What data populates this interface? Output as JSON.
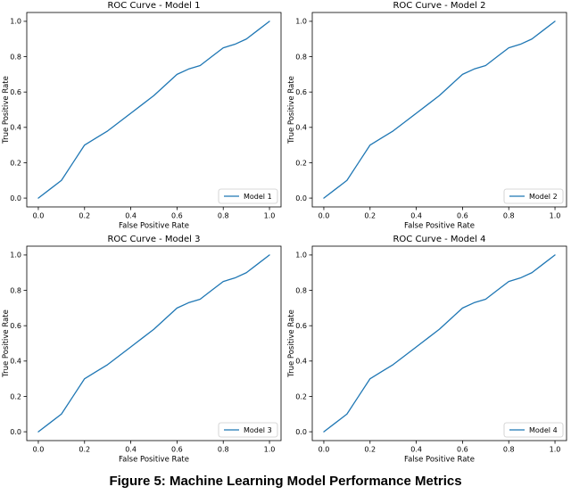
{
  "figure": {
    "caption": "Figure 5: Machine Learning Model Performance Metrics"
  },
  "style": {
    "line_color": "#1f77b4",
    "axis_color": "#000000",
    "legend_border_color": "#cccccc",
    "background_color": "#ffffff"
  },
  "chart_data": [
    {
      "type": "line",
      "title": "ROC Curve - Model 1",
      "xlabel": "False Positive Rate",
      "ylabel": "True Positive Rate",
      "xlim": [
        -0.05,
        1.05
      ],
      "ylim": [
        -0.05,
        1.05
      ],
      "xticks": [
        "0.0",
        "0.2",
        "0.4",
        "0.6",
        "0.8",
        "1.0"
      ],
      "yticks": [
        "0.0",
        "0.2",
        "0.4",
        "0.6",
        "0.8",
        "1.0"
      ],
      "grid": false,
      "legend": {
        "label": "Model 1",
        "position": "lower right"
      },
      "line_color": "#1f77b4",
      "x": [
        0,
        0.05,
        0.1,
        0.15,
        0.2,
        0.25,
        0.3,
        0.35,
        0.4,
        0.45,
        0.5,
        0.55,
        0.6,
        0.65,
        0.7,
        0.75,
        0.8,
        0.85,
        0.9,
        0.95,
        1.0
      ],
      "series": [
        {
          "name": "Model 1",
          "values": [
            0,
            0.05,
            0.1,
            0.2,
            0.3,
            0.34,
            0.38,
            0.43,
            0.48,
            0.53,
            0.58,
            0.64,
            0.7,
            0.73,
            0.75,
            0.8,
            0.85,
            0.87,
            0.9,
            0.95,
            1.0
          ]
        }
      ]
    },
    {
      "type": "line",
      "title": "ROC Curve - Model 2",
      "xlabel": "False Positive Rate",
      "ylabel": "True Positive Rate",
      "xlim": [
        -0.05,
        1.05
      ],
      "ylim": [
        -0.05,
        1.05
      ],
      "xticks": [
        "0.0",
        "0.2",
        "0.4",
        "0.6",
        "0.8",
        "1.0"
      ],
      "yticks": [
        "0.0",
        "0.2",
        "0.4",
        "0.6",
        "0.8",
        "1.0"
      ],
      "grid": false,
      "legend": {
        "label": "Model 2",
        "position": "lower right"
      },
      "line_color": "#1f77b4",
      "x": [
        0,
        0.05,
        0.1,
        0.15,
        0.2,
        0.25,
        0.3,
        0.35,
        0.4,
        0.45,
        0.5,
        0.55,
        0.6,
        0.65,
        0.7,
        0.75,
        0.8,
        0.85,
        0.9,
        0.95,
        1.0
      ],
      "series": [
        {
          "name": "Model 2",
          "values": [
            0,
            0.05,
            0.1,
            0.2,
            0.3,
            0.34,
            0.38,
            0.43,
            0.48,
            0.53,
            0.58,
            0.64,
            0.7,
            0.73,
            0.75,
            0.8,
            0.85,
            0.87,
            0.9,
            0.95,
            1.0
          ]
        }
      ]
    },
    {
      "type": "line",
      "title": "ROC Curve - Model 3",
      "xlabel": "False Positive Rate",
      "ylabel": "True Positive Rate",
      "xlim": [
        -0.05,
        1.05
      ],
      "ylim": [
        -0.05,
        1.05
      ],
      "xticks": [
        "0.0",
        "0.2",
        "0.4",
        "0.6",
        "0.8",
        "1.0"
      ],
      "yticks": [
        "0.0",
        "0.2",
        "0.4",
        "0.6",
        "0.8",
        "1.0"
      ],
      "grid": false,
      "legend": {
        "label": "Model 3",
        "position": "lower right"
      },
      "line_color": "#1f77b4",
      "x": [
        0,
        0.05,
        0.1,
        0.15,
        0.2,
        0.25,
        0.3,
        0.35,
        0.4,
        0.45,
        0.5,
        0.55,
        0.6,
        0.65,
        0.7,
        0.75,
        0.8,
        0.85,
        0.9,
        0.95,
        1.0
      ],
      "series": [
        {
          "name": "Model 3",
          "values": [
            0,
            0.05,
            0.1,
            0.2,
            0.3,
            0.34,
            0.38,
            0.43,
            0.48,
            0.53,
            0.58,
            0.64,
            0.7,
            0.73,
            0.75,
            0.8,
            0.85,
            0.87,
            0.9,
            0.95,
            1.0
          ]
        }
      ]
    },
    {
      "type": "line",
      "title": "ROC Curve - Model 4",
      "xlabel": "False Positive Rate",
      "ylabel": "True Positive Rate",
      "xlim": [
        -0.05,
        1.05
      ],
      "ylim": [
        -0.05,
        1.05
      ],
      "xticks": [
        "0.0",
        "0.2",
        "0.4",
        "0.6",
        "0.8",
        "1.0"
      ],
      "yticks": [
        "0.0",
        "0.2",
        "0.4",
        "0.6",
        "0.8",
        "1.0"
      ],
      "grid": false,
      "legend": {
        "label": "Model 4",
        "position": "lower right"
      },
      "line_color": "#1f77b4",
      "x": [
        0,
        0.05,
        0.1,
        0.15,
        0.2,
        0.25,
        0.3,
        0.35,
        0.4,
        0.45,
        0.5,
        0.55,
        0.6,
        0.65,
        0.7,
        0.75,
        0.8,
        0.85,
        0.9,
        0.95,
        1.0
      ],
      "series": [
        {
          "name": "Model 4",
          "values": [
            0,
            0.05,
            0.1,
            0.2,
            0.3,
            0.34,
            0.38,
            0.43,
            0.48,
            0.53,
            0.58,
            0.64,
            0.7,
            0.73,
            0.75,
            0.8,
            0.85,
            0.87,
            0.9,
            0.95,
            1.0
          ]
        }
      ]
    }
  ]
}
